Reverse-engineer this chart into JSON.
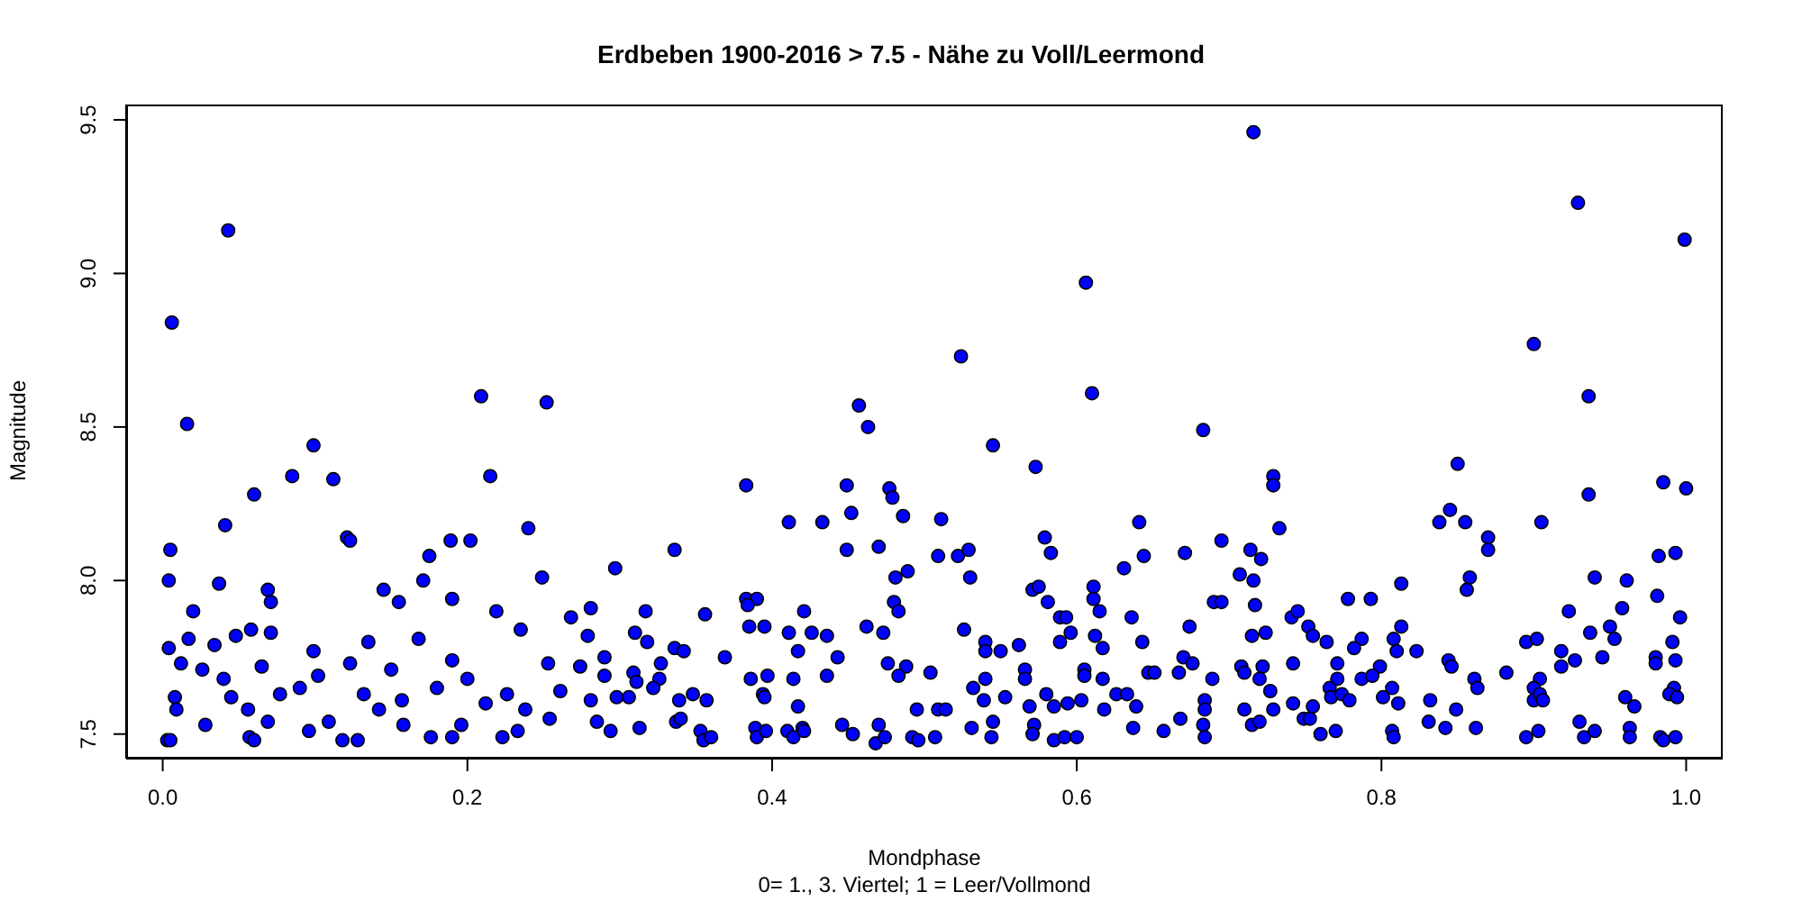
{
  "chart_data": {
    "type": "scatter",
    "title": "Erdbeben 1900-2016 > 7.5 - Nähe zu Voll/Leermond",
    "xlabel": "Mondphase",
    "ylabel": "Magnitude",
    "annotations": [
      "0= 1., 3. Viertel; 1 = Leer/Vollmond"
    ],
    "marker": "circle",
    "xlim": [
      -0.024,
      1.024
    ],
    "ylim": [
      7.42,
      9.55
    ],
    "xticks": [
      {
        "value": 0,
        "label": "0.0"
      },
      {
        "value": 0.2,
        "label": "0.2"
      },
      {
        "value": 0.4,
        "label": "0.4"
      },
      {
        "value": 0.6,
        "label": "0.6"
      },
      {
        "value": 0.8,
        "label": "0.8"
      },
      {
        "value": 1,
        "label": "1.0"
      }
    ],
    "yticks": [
      {
        "value": 7.5,
        "label": "7.5"
      },
      {
        "value": 8,
        "label": "8.0"
      },
      {
        "value": 8.5,
        "label": "8.5"
      },
      {
        "value": 9,
        "label": "9.0"
      },
      {
        "value": 9.5,
        "label": "9.5"
      }
    ],
    "series": [
      {
        "color": "#0000ff",
        "x": [
          0.006,
          0.043,
          0.016,
          0.099,
          0.085,
          0.112,
          0.06,
          0.209,
          0.252,
          0.215,
          0.041,
          0.24,
          0.005,
          0.004,
          0.121,
          0.123,
          0.175,
          0.189,
          0.202,
          0.297,
          0.249,
          0.037,
          0.069,
          0.145,
          0.171,
          0.19,
          0.02,
          0.071,
          0.155,
          0.219,
          0.281,
          0.268,
          0.317,
          0.004,
          0.017,
          0.048,
          0.058,
          0.071,
          0.135,
          0.168,
          0.235,
          0.279,
          0.31,
          0.034,
          0.099,
          0.012,
          0.026,
          0.065,
          0.15,
          0.253,
          0.29,
          0.04,
          0.102,
          0.123,
          0.19,
          0.274,
          0.18,
          0.29,
          0.09,
          0.077,
          0.008,
          0.045,
          0.132,
          0.157,
          0.2,
          0.226,
          0.261,
          0.306,
          0.009,
          0.056,
          0.142,
          0.212,
          0.238,
          0.281,
          0.069,
          0.028,
          0.096,
          0.109,
          0.158,
          0.196,
          0.254,
          0.285,
          0.313,
          0.003,
          0.005,
          0.057,
          0.06,
          0.118,
          0.128,
          0.176,
          0.223,
          0.19,
          0.233,
          0.294,
          0.606,
          0.61,
          0.524,
          0.457,
          0.463,
          0.545,
          0.573,
          0.383,
          0.449,
          0.477,
          0.479,
          0.411,
          0.433,
          0.452,
          0.486,
          0.511,
          0.641,
          0.579,
          0.583,
          0.449,
          0.47,
          0.509,
          0.522,
          0.529,
          0.336,
          0.644,
          0.631,
          0.481,
          0.489,
          0.53,
          0.383,
          0.39,
          0.384,
          0.48,
          0.483,
          0.571,
          0.575,
          0.611,
          0.611,
          0.581,
          0.615,
          0.356,
          0.421,
          0.636,
          0.385,
          0.395,
          0.411,
          0.426,
          0.436,
          0.462,
          0.473,
          0.526,
          0.589,
          0.593,
          0.596,
          0.612,
          0.318,
          0.336,
          0.342,
          0.369,
          0.417,
          0.443,
          0.54,
          0.54,
          0.55,
          0.562,
          0.589,
          0.617,
          0.643,
          0.327,
          0.476,
          0.488,
          0.483,
          0.309,
          0.326,
          0.311,
          0.386,
          0.397,
          0.414,
          0.436,
          0.504,
          0.566,
          0.605,
          0.605,
          0.617,
          0.566,
          0.54,
          0.322,
          0.348,
          0.298,
          0.394,
          0.395,
          0.357,
          0.339,
          0.532,
          0.553,
          0.58,
          0.626,
          0.633,
          0.539,
          0.603,
          0.594,
          0.417,
          0.495,
          0.509,
          0.514,
          0.569,
          0.585,
          0.618,
          0.639,
          0.337,
          0.34,
          0.389,
          0.42,
          0.446,
          0.47,
          0.531,
          0.545,
          0.572,
          0.637,
          0.353,
          0.355,
          0.36,
          0.39,
          0.396,
          0.41,
          0.414,
          0.421,
          0.453,
          0.468,
          0.474,
          0.492,
          0.496,
          0.507,
          0.544,
          0.571,
          0.585,
          0.592,
          0.6,
          0.716,
          0.929,
          0.999,
          0.9,
          0.936,
          0.683,
          0.85,
          0.729,
          0.729,
          0.985,
          1.0,
          0.936,
          0.845,
          0.838,
          0.855,
          0.905,
          0.733,
          0.695,
          0.87,
          0.87,
          0.671,
          0.714,
          0.721,
          0.982,
          0.993,
          0.707,
          0.716,
          0.94,
          0.961,
          0.858,
          0.856,
          0.813,
          0.69,
          0.695,
          0.717,
          0.778,
          0.793,
          0.981,
          0.923,
          0.958,
          0.741,
          0.745,
          0.996,
          0.674,
          0.724,
          0.752,
          0.755,
          0.813,
          0.937,
          0.95,
          0.715,
          0.764,
          0.787,
          0.782,
          0.808,
          0.81,
          0.823,
          0.895,
          0.902,
          0.953,
          0.991,
          0.918,
          0.67,
          0.676,
          0.742,
          0.771,
          0.844,
          0.846,
          0.927,
          0.945,
          0.98,
          0.98,
          0.993,
          0.647,
          0.651,
          0.667,
          0.708,
          0.71,
          0.722,
          0.799,
          0.882,
          0.918,
          0.689,
          0.72,
          0.771,
          0.787,
          0.794,
          0.861,
          0.904,
          0.727,
          0.766,
          0.807,
          0.863,
          0.9,
          0.992,
          0.684,
          0.767,
          0.774,
          0.779,
          0.801,
          0.832,
          0.742,
          0.755,
          0.811,
          0.9,
          0.904,
          0.906,
          0.96,
          0.966,
          0.989,
          0.994,
          0.684,
          0.71,
          0.729,
          0.849,
          0.668,
          0.749,
          0.753,
          0.683,
          0.715,
          0.72,
          0.831,
          0.842,
          0.862,
          0.93,
          0.963,
          0.657,
          0.684,
          0.76,
          0.77,
          0.807,
          0.808,
          0.895,
          0.903,
          0.933,
          0.94,
          0.963,
          0.983,
          0.985,
          0.993
        ],
        "values": [
          8.84,
          9.14,
          8.51,
          8.44,
          8.34,
          8.33,
          8.28,
          8.6,
          8.58,
          8.34,
          8.18,
          8.17,
          8.1,
          8.0,
          8.14,
          8.13,
          8.08,
          8.13,
          8.13,
          8.04,
          8.01,
          7.99,
          7.97,
          7.97,
          8.0,
          7.94,
          7.9,
          7.93,
          7.93,
          7.9,
          7.91,
          7.88,
          7.9,
          7.78,
          7.81,
          7.82,
          7.84,
          7.83,
          7.8,
          7.81,
          7.84,
          7.82,
          7.83,
          7.79,
          7.77,
          7.73,
          7.71,
          7.72,
          7.71,
          7.73,
          7.75,
          7.68,
          7.69,
          7.73,
          7.74,
          7.72,
          7.65,
          7.69,
          7.65,
          7.63,
          7.62,
          7.62,
          7.63,
          7.61,
          7.68,
          7.63,
          7.64,
          7.62,
          7.58,
          7.58,
          7.58,
          7.6,
          7.58,
          7.61,
          7.54,
          7.53,
          7.51,
          7.54,
          7.53,
          7.53,
          7.55,
          7.54,
          7.52,
          7.48,
          7.48,
          7.49,
          7.48,
          7.48,
          7.48,
          7.49,
          7.49,
          7.49,
          7.51,
          7.51,
          8.97,
          8.61,
          8.73,
          8.57,
          8.5,
          8.44,
          8.37,
          8.31,
          8.31,
          8.3,
          8.27,
          8.19,
          8.19,
          8.22,
          8.21,
          8.2,
          8.19,
          8.14,
          8.09,
          8.1,
          8.11,
          8.08,
          8.08,
          8.1,
          8.1,
          8.08,
          8.04,
          8.01,
          8.03,
          8.01,
          7.94,
          7.94,
          7.92,
          7.93,
          7.9,
          7.97,
          7.98,
          7.98,
          7.94,
          7.93,
          7.9,
          7.89,
          7.9,
          7.88,
          7.85,
          7.85,
          7.83,
          7.83,
          7.82,
          7.85,
          7.83,
          7.84,
          7.88,
          7.88,
          7.83,
          7.82,
          7.8,
          7.78,
          7.77,
          7.75,
          7.77,
          7.75,
          7.8,
          7.77,
          7.77,
          7.79,
          7.8,
          7.78,
          7.8,
          7.73,
          7.73,
          7.72,
          7.69,
          7.7,
          7.68,
          7.67,
          7.68,
          7.69,
          7.68,
          7.69,
          7.7,
          7.71,
          7.71,
          7.69,
          7.68,
          7.68,
          7.68,
          7.65,
          7.63,
          7.62,
          7.63,
          7.62,
          7.61,
          7.61,
          7.65,
          7.62,
          7.63,
          7.63,
          7.63,
          7.61,
          7.61,
          7.6,
          7.59,
          7.58,
          7.58,
          7.58,
          7.59,
          7.59,
          7.58,
          7.59,
          7.54,
          7.55,
          7.52,
          7.52,
          7.53,
          7.53,
          7.52,
          7.54,
          7.53,
          7.52,
          7.51,
          7.48,
          7.49,
          7.49,
          7.51,
          7.51,
          7.49,
          7.51,
          7.5,
          7.47,
          7.49,
          7.49,
          7.48,
          7.49,
          7.49,
          7.5,
          7.48,
          7.49,
          7.49,
          9.46,
          9.23,
          9.11,
          8.77,
          8.6,
          8.49,
          8.38,
          8.34,
          8.31,
          8.32,
          8.3,
          8.28,
          8.23,
          8.19,
          8.19,
          8.19,
          8.17,
          8.13,
          8.14,
          8.1,
          8.09,
          8.1,
          8.07,
          8.08,
          8.09,
          8.02,
          8.0,
          8.01,
          8.0,
          8.01,
          7.97,
          7.99,
          7.93,
          7.93,
          7.92,
          7.94,
          7.94,
          7.95,
          7.9,
          7.91,
          7.88,
          7.9,
          7.88,
          7.85,
          7.83,
          7.85,
          7.82,
          7.85,
          7.83,
          7.85,
          7.82,
          7.8,
          7.81,
          7.78,
          7.81,
          7.77,
          7.77,
          7.8,
          7.81,
          7.81,
          7.8,
          7.77,
          7.75,
          7.73,
          7.73,
          7.73,
          7.74,
          7.72,
          7.74,
          7.75,
          7.75,
          7.73,
          7.74,
          7.7,
          7.7,
          7.7,
          7.72,
          7.7,
          7.72,
          7.72,
          7.7,
          7.72,
          7.68,
          7.68,
          7.68,
          7.68,
          7.69,
          7.68,
          7.68,
          7.64,
          7.65,
          7.65,
          7.65,
          7.65,
          7.65,
          7.61,
          7.62,
          7.63,
          7.61,
          7.62,
          7.61,
          7.6,
          7.59,
          7.6,
          7.61,
          7.63,
          7.61,
          7.62,
          7.59,
          7.63,
          7.62,
          7.58,
          7.58,
          7.58,
          7.58,
          7.55,
          7.55,
          7.55,
          7.53,
          7.53,
          7.54,
          7.54,
          7.52,
          7.52,
          7.54,
          7.52,
          7.51,
          7.49,
          7.5,
          7.51,
          7.51,
          7.49,
          7.49,
          7.51,
          7.49,
          7.51,
          7.49,
          7.49,
          7.48,
          7.49
        ]
      }
    ]
  }
}
